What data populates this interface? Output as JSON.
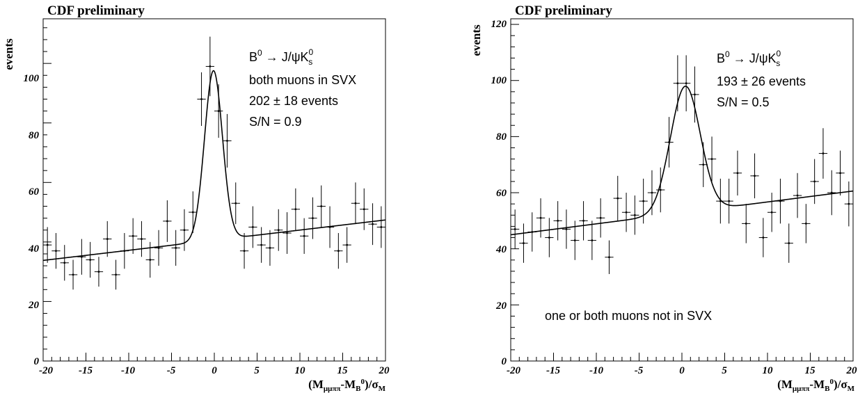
{
  "chart_data": [
    {
      "type": "scatter",
      "pad_title": "CDF preliminary",
      "ylabel": "events",
      "xlabel": {
        "open": "(M",
        "sub1": "μμππ",
        "mid": "-M",
        "sub2": "B",
        "sup2": "0",
        "end": ")/σ",
        "sub3": "M"
      },
      "xlim": [
        -20,
        20
      ],
      "ylim": [
        0,
        115
      ],
      "x_ticks": [
        -20,
        -15,
        -10,
        -5,
        0,
        5,
        10,
        15,
        20
      ],
      "y_ticks": [
        0,
        20,
        40,
        60,
        80,
        100
      ],
      "annotations": {
        "decay": {
          "lead": "B",
          "lead_sup": "0",
          "arrow": " → J/ψK",
          "tail_sup": "0",
          "tail_sub": "s"
        },
        "lines": [
          "both muons in SVX",
          "202 ±  18 events",
          "S/N = 0.9"
        ]
      },
      "fit": {
        "background_at_xmin": 33.8,
        "background_slope": 0.34,
        "peak_amplitude": 57,
        "peak_mean": -0.1,
        "peak_sigma": 1.05
      },
      "points": [
        {
          "x": -19.5,
          "y": 39,
          "err": 6
        },
        {
          "x": -18.5,
          "y": 37,
          "err": 6
        },
        {
          "x": -17.5,
          "y": 33,
          "err": 6
        },
        {
          "x": -16.5,
          "y": 29,
          "err": 5
        },
        {
          "x": -15.5,
          "y": 35,
          "err": 6
        },
        {
          "x": -14.5,
          "y": 34,
          "err": 6
        },
        {
          "x": -13.5,
          "y": 30,
          "err": 5
        },
        {
          "x": -12.5,
          "y": 41,
          "err": 6
        },
        {
          "x": -11.5,
          "y": 29,
          "err": 5
        },
        {
          "x": -10.5,
          "y": 37,
          "err": 6
        },
        {
          "x": -9.5,
          "y": 42,
          "err": 6
        },
        {
          "x": -8.5,
          "y": 41,
          "err": 6
        },
        {
          "x": -7.5,
          "y": 34,
          "err": 6
        },
        {
          "x": -6.5,
          "y": 38,
          "err": 6
        },
        {
          "x": -5.5,
          "y": 47,
          "err": 7
        },
        {
          "x": -4.5,
          "y": 38,
          "err": 6
        },
        {
          "x": -3.5,
          "y": 44,
          "err": 7
        },
        {
          "x": -2.5,
          "y": 50,
          "err": 7
        },
        {
          "x": -1.5,
          "y": 88,
          "err": 9
        },
        {
          "x": -0.5,
          "y": 99,
          "err": 10
        },
        {
          "x": 0.5,
          "y": 84,
          "err": 9
        },
        {
          "x": 1.5,
          "y": 74,
          "err": 9
        },
        {
          "x": 2.5,
          "y": 53,
          "err": 7
        },
        {
          "x": 3.5,
          "y": 37,
          "err": 6
        },
        {
          "x": 4.5,
          "y": 45,
          "err": 7
        },
        {
          "x": 5.5,
          "y": 39,
          "err": 6
        },
        {
          "x": 6.5,
          "y": 38,
          "err": 6
        },
        {
          "x": 7.5,
          "y": 44,
          "err": 7
        },
        {
          "x": 8.5,
          "y": 43,
          "err": 7
        },
        {
          "x": 9.5,
          "y": 51,
          "err": 7
        },
        {
          "x": 10.5,
          "y": 42,
          "err": 6
        },
        {
          "x": 11.5,
          "y": 48,
          "err": 7
        },
        {
          "x": 12.5,
          "y": 52,
          "err": 7
        },
        {
          "x": 13.5,
          "y": 45,
          "err": 7
        },
        {
          "x": 14.5,
          "y": 37,
          "err": 6
        },
        {
          "x": 15.5,
          "y": 39,
          "err": 6
        },
        {
          "x": 16.5,
          "y": 53,
          "err": 7
        },
        {
          "x": 17.5,
          "y": 51,
          "err": 7
        },
        {
          "x": 18.5,
          "y": 46,
          "err": 7
        },
        {
          "x": 19.5,
          "y": 45,
          "err": 7
        }
      ]
    },
    {
      "type": "scatter",
      "pad_title": "CDF preliminary",
      "ylabel": "events",
      "xlabel": {
        "open": "(M",
        "sub1": "μμππ",
        "mid": "-M",
        "sub2": "B",
        "sup2": "0",
        "end": ")/σ",
        "sub3": "M"
      },
      "xlim": [
        -20,
        20
      ],
      "ylim": [
        0,
        122
      ],
      "x_ticks": [
        -20,
        -15,
        -10,
        -5,
        0,
        5,
        10,
        15,
        20
      ],
      "y_ticks": [
        0,
        20,
        40,
        60,
        80,
        100,
        120
      ],
      "annotations": {
        "decay": {
          "lead": "B",
          "lead_sup": "0",
          "arrow": " → J/ψK",
          "tail_sup": "0",
          "tail_sub": "s"
        },
        "lines": [
          "193 ±  26 events",
          "S/N = 0.5"
        ],
        "footer": "one or both muons not in SVX"
      },
      "fit": {
        "background_at_xmin": 45,
        "background_slope": 0.39,
        "peak_amplitude": 45,
        "peak_mean": 0.4,
        "peak_sigma": 1.75
      },
      "points": [
        {
          "x": -19.5,
          "y": 47,
          "err": 7
        },
        {
          "x": -18.5,
          "y": 42,
          "err": 7
        },
        {
          "x": -17.5,
          "y": 46,
          "err": 7
        },
        {
          "x": -16.5,
          "y": 51,
          "err": 7
        },
        {
          "x": -15.5,
          "y": 44,
          "err": 7
        },
        {
          "x": -14.5,
          "y": 50,
          "err": 7
        },
        {
          "x": -13.5,
          "y": 47,
          "err": 7
        },
        {
          "x": -12.5,
          "y": 43,
          "err": 7
        },
        {
          "x": -11.5,
          "y": 50,
          "err": 7
        },
        {
          "x": -10.5,
          "y": 43,
          "err": 7
        },
        {
          "x": -9.5,
          "y": 51,
          "err": 7
        },
        {
          "x": -8.5,
          "y": 37,
          "err": 6
        },
        {
          "x": -7.5,
          "y": 58,
          "err": 8
        },
        {
          "x": -6.5,
          "y": 53,
          "err": 7
        },
        {
          "x": -5.5,
          "y": 52,
          "err": 7
        },
        {
          "x": -4.5,
          "y": 57,
          "err": 8
        },
        {
          "x": -3.5,
          "y": 60,
          "err": 8
        },
        {
          "x": -2.5,
          "y": 61,
          "err": 8
        },
        {
          "x": -1.5,
          "y": 78,
          "err": 9
        },
        {
          "x": -0.5,
          "y": 99,
          "err": 10
        },
        {
          "x": 0.5,
          "y": 99,
          "err": 10
        },
        {
          "x": 1.5,
          "y": 95,
          "err": 10
        },
        {
          "x": 2.5,
          "y": 70,
          "err": 8
        },
        {
          "x": 3.5,
          "y": 72,
          "err": 8
        },
        {
          "x": 4.5,
          "y": 57,
          "err": 8
        },
        {
          "x": 5.5,
          "y": 57,
          "err": 8
        },
        {
          "x": 6.5,
          "y": 67,
          "err": 8
        },
        {
          "x": 7.5,
          "y": 49,
          "err": 7
        },
        {
          "x": 8.5,
          "y": 66,
          "err": 8
        },
        {
          "x": 9.5,
          "y": 44,
          "err": 7
        },
        {
          "x": 10.5,
          "y": 53,
          "err": 7
        },
        {
          "x": 11.5,
          "y": 57,
          "err": 8
        },
        {
          "x": 12.5,
          "y": 42,
          "err": 7
        },
        {
          "x": 13.5,
          "y": 59,
          "err": 8
        },
        {
          "x": 14.5,
          "y": 49,
          "err": 7
        },
        {
          "x": 15.5,
          "y": 64,
          "err": 8
        },
        {
          "x": 16.5,
          "y": 74,
          "err": 9
        },
        {
          "x": 17.5,
          "y": 60,
          "err": 8
        },
        {
          "x": 18.5,
          "y": 67,
          "err": 8
        },
        {
          "x": 19.5,
          "y": 56,
          "err": 8
        }
      ]
    }
  ]
}
